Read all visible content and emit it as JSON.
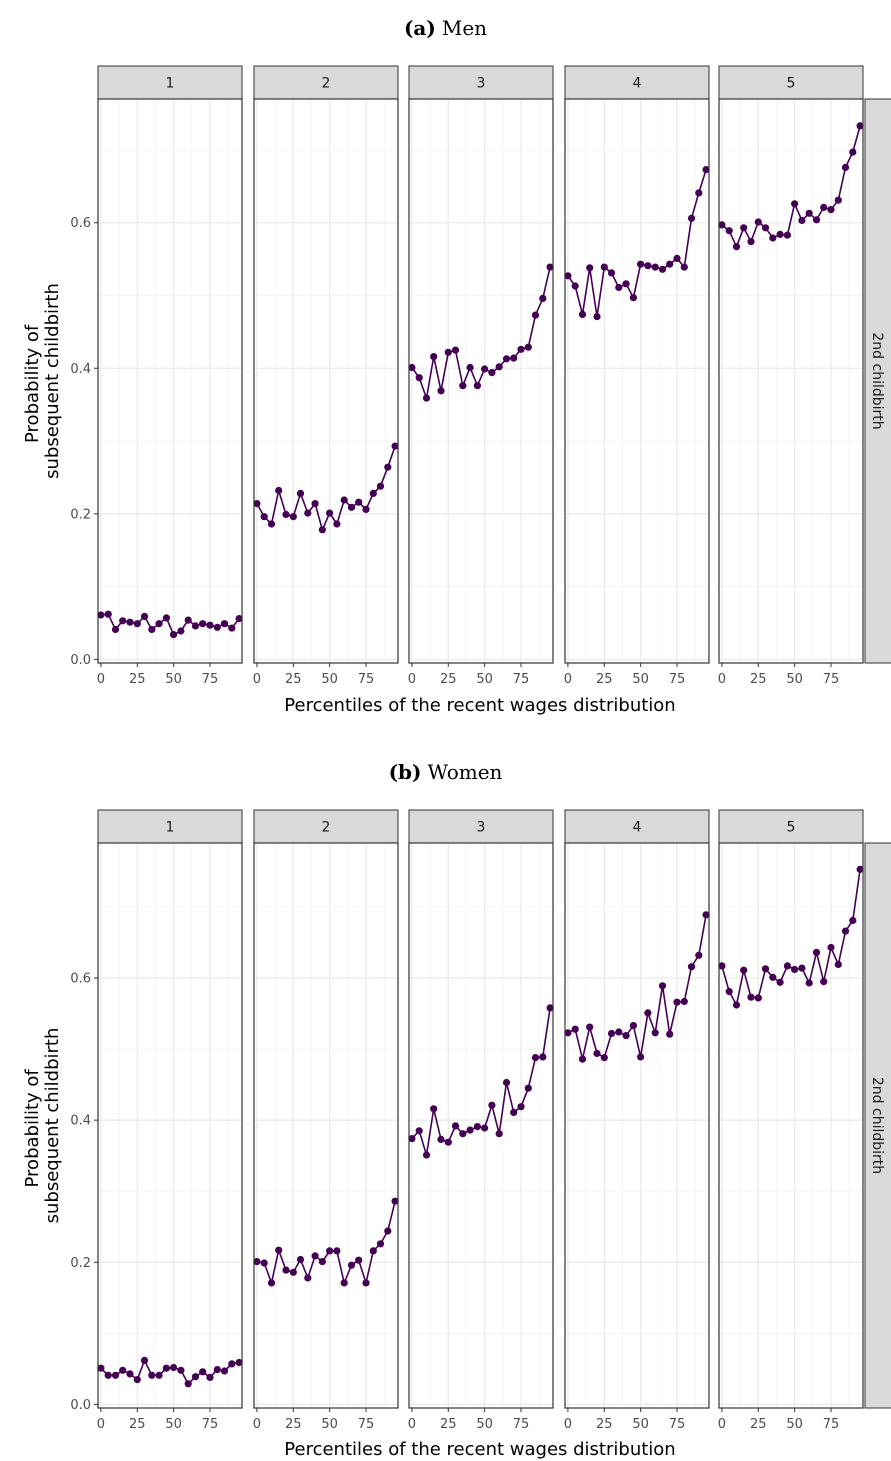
{
  "chart_data": [
    {
      "type": "line",
      "title_tag": "(a)",
      "title": "Men",
      "facets": [
        "1",
        "2",
        "3",
        "4",
        "5"
      ],
      "row_strip": "2nd childbirth",
      "xlabel": "Percentiles of the recent wages distribution",
      "ylabel": [
        "Probability of",
        "subsequent childbirth"
      ],
      "x_ticks": [
        "0",
        "25",
        "50",
        "75"
      ],
      "y_ticks": [
        "0.0",
        "0.2",
        "0.4",
        "0.6"
      ],
      "xlim": [
        -2,
        97
      ],
      "ylim": [
        -0.005,
        0.77
      ],
      "x": [
        0,
        5,
        10,
        15,
        20,
        25,
        30,
        35,
        40,
        45,
        50,
        55,
        60,
        65,
        70,
        75,
        80,
        85,
        90,
        95
      ],
      "series": [
        {
          "facet": "1",
          "values": [
            0.061,
            0.062,
            0.041,
            0.053,
            0.051,
            0.049,
            0.059,
            0.041,
            0.049,
            0.057,
            0.034,
            0.039,
            0.054,
            0.046,
            0.049,
            0.047,
            0.044,
            0.049,
            0.043,
            0.056
          ]
        },
        {
          "facet": "2",
          "values": [
            0.214,
            0.196,
            0.186,
            0.232,
            0.199,
            0.196,
            0.228,
            0.201,
            0.214,
            0.178,
            0.201,
            0.186,
            0.219,
            0.209,
            0.216,
            0.206,
            0.228,
            0.238,
            0.264,
            0.293
          ]
        },
        {
          "facet": "3",
          "values": [
            0.401,
            0.387,
            0.359,
            0.416,
            0.369,
            0.422,
            0.425,
            0.376,
            0.401,
            0.376,
            0.399,
            0.394,
            0.402,
            0.413,
            0.414,
            0.426,
            0.429,
            0.473,
            0.496,
            0.539
          ]
        },
        {
          "facet": "4",
          "values": [
            0.527,
            0.513,
            0.474,
            0.538,
            0.471,
            0.539,
            0.531,
            0.511,
            0.516,
            0.497,
            0.543,
            0.541,
            0.539,
            0.536,
            0.543,
            0.551,
            0.539,
            0.606,
            0.641,
            0.673
          ]
        },
        {
          "facet": "5",
          "values": [
            0.597,
            0.589,
            0.567,
            0.593,
            0.574,
            0.601,
            0.593,
            0.579,
            0.584,
            0.583,
            0.626,
            0.603,
            0.613,
            0.604,
            0.621,
            0.618,
            0.631,
            0.676,
            0.697,
            0.733
          ]
        }
      ]
    },
    {
      "type": "line",
      "title_tag": "(b)",
      "title": "Women",
      "facets": [
        "1",
        "2",
        "3",
        "4",
        "5"
      ],
      "row_strip": "2nd childbirth",
      "xlabel": "Percentiles of the recent wages distribution",
      "ylabel": [
        "Probability of",
        "subsequent childbirth"
      ],
      "x_ticks": [
        "0",
        "25",
        "50",
        "75"
      ],
      "y_ticks": [
        "0.0",
        "0.2",
        "0.4",
        "0.6"
      ],
      "xlim": [
        -2,
        97
      ],
      "ylim": [
        -0.005,
        0.79
      ],
      "x": [
        0,
        5,
        10,
        15,
        20,
        25,
        30,
        35,
        40,
        45,
        50,
        55,
        60,
        65,
        70,
        75,
        80,
        85,
        90,
        95
      ],
      "series": [
        {
          "facet": "1",
          "values": [
            0.051,
            0.041,
            0.041,
            0.048,
            0.043,
            0.035,
            0.062,
            0.041,
            0.041,
            0.051,
            0.052,
            0.048,
            0.029,
            0.039,
            0.046,
            0.038,
            0.049,
            0.047,
            0.057,
            0.059
          ]
        },
        {
          "facet": "2",
          "values": [
            0.201,
            0.199,
            0.171,
            0.217,
            0.189,
            0.186,
            0.204,
            0.178,
            0.209,
            0.201,
            0.216,
            0.216,
            0.171,
            0.196,
            0.203,
            0.171,
            0.216,
            0.226,
            0.244,
            0.286
          ]
        },
        {
          "facet": "3",
          "values": [
            0.374,
            0.385,
            0.351,
            0.416,
            0.373,
            0.369,
            0.392,
            0.381,
            0.386,
            0.391,
            0.389,
            0.421,
            0.381,
            0.453,
            0.411,
            0.419,
            0.445,
            0.488,
            0.489,
            0.558
          ]
        },
        {
          "facet": "4",
          "values": [
            0.523,
            0.528,
            0.486,
            0.531,
            0.494,
            0.488,
            0.522,
            0.524,
            0.519,
            0.533,
            0.489,
            0.551,
            0.523,
            0.589,
            0.521,
            0.566,
            0.567,
            0.616,
            0.632,
            0.689
          ]
        },
        {
          "facet": "5",
          "values": [
            0.617,
            0.581,
            0.562,
            0.611,
            0.573,
            0.572,
            0.613,
            0.601,
            0.594,
            0.617,
            0.612,
            0.614,
            0.593,
            0.636,
            0.595,
            0.643,
            0.619,
            0.666,
            0.681,
            0.753
          ]
        }
      ]
    }
  ],
  "colors": {
    "series": "#440154",
    "strip_fill": "#d9d9d9",
    "grid_major": "#ebebeb",
    "grid_minor": "#f5f5f5"
  }
}
